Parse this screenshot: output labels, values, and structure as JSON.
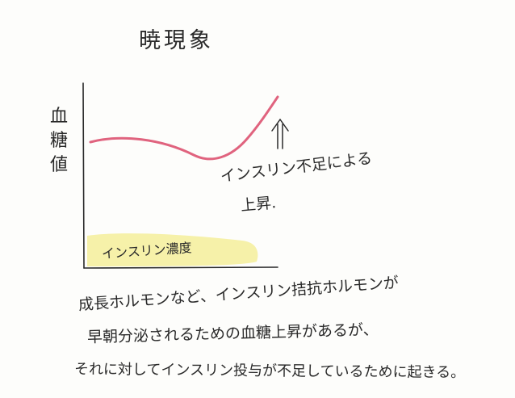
{
  "title": "暁現象",
  "y_axis_label": [
    "血",
    "糖",
    "値"
  ],
  "insulin_label": "インスリン濃度",
  "annotation": {
    "arrow": "↑",
    "line1": "インスリン不足による",
    "line2": "上昇."
  },
  "notes": [
    "成長ホルモンなど、インスリン拮抗ホルモンが",
    "早朝分泌されるための血糖上昇があるが、",
    "それに対してインスリン投与が不足しているために起きる。"
  ],
  "colors": {
    "glucose_curve": "#e0637e",
    "insulin_band": "#f4ef9a",
    "ink": "#2a2a2a"
  }
}
